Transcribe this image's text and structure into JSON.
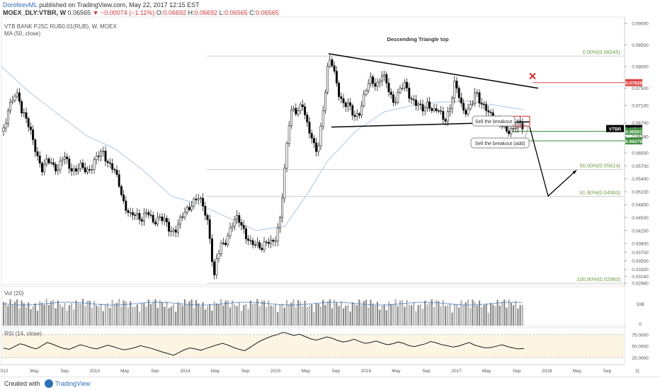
{
  "header": {
    "author": "DorofeevML",
    "published": "published on TradingView.com, May 22, 2017 12:15 EST",
    "symbol": "MOEX_DLY:VTBR, W",
    "last": "0.06565",
    "change": "▼ −0.00074 (−1.11%)",
    "o_label": "O:",
    "o_val": "0.06692",
    "h_label": "H:",
    "h_val": "0.06692",
    "l_label": "L:",
    "l_val": "0.06565",
    "c_label": "C:",
    "c_val": "0.06565",
    "instrument": "VTB BANK PJSC RUB0.01(RUB), W, MOEX",
    "study": "MA (50, close)"
  },
  "panes": {
    "vol_label": "Vol (20)",
    "rsi_label": "RSI (14, close)"
  },
  "footer": {
    "created": "Created with",
    "brand": "TradingView"
  },
  "colors": {
    "candle_up": "#ffffff",
    "candle_down": "#000000",
    "ma": "#b9cfe4",
    "fib": "#6b9e3f",
    "fib_line": "#c9c9c9",
    "red_level": "#e04545",
    "green_level": "#3e8e3e",
    "vol_bar": "#9e9e9e",
    "vol_ma": "#2f6fb6",
    "rsi": "#000000",
    "rsi_band": "#fdf5e4"
  },
  "chart_data": {
    "type": "candlestick",
    "instrument": "VTB BANK PJSC RUB0.01(RUB), W, MOEX",
    "y_ticks": [
      0.09,
      0.085,
      0.08,
      0.075,
      0.071,
      0.067,
      0.0638,
      0.06,
      0.057,
      0.054,
      0.051,
      0.048,
      0.045,
      0.042,
      0.039,
      0.037,
      0.035,
      0.033,
      0.0314,
      0.0298
    ],
    "y_range": [
      0.0295,
      0.0915
    ],
    "x_ticks": [
      "012",
      "May",
      "Sep",
      "2013",
      "May",
      "Sep",
      "2014",
      "May",
      "Sep",
      "2015",
      "May",
      "Sep",
      "2016",
      "May",
      "Sep",
      "2017",
      "May",
      "Sep",
      "2018",
      "May",
      "Sep",
      "2("
    ],
    "price_path": [
      [
        0,
        0.065
      ],
      [
        4,
        0.066
      ],
      [
        9,
        0.07
      ],
      [
        14,
        0.0712
      ],
      [
        19,
        0.073
      ],
      [
        24,
        0.0735
      ],
      [
        29,
        0.07
      ],
      [
        34,
        0.0685
      ],
      [
        40,
        0.065
      ],
      [
        46,
        0.062
      ],
      [
        52,
        0.059
      ],
      [
        58,
        0.056
      ],
      [
        65,
        0.058
      ],
      [
        72,
        0.0575
      ],
      [
        80,
        0.0565
      ],
      [
        88,
        0.059
      ],
      [
        96,
        0.057
      ],
      [
        104,
        0.056
      ],
      [
        112,
        0.0565
      ],
      [
        120,
        0.056
      ],
      [
        128,
        0.057
      ],
      [
        136,
        0.059
      ],
      [
        144,
        0.0605
      ],
      [
        150,
        0.058
      ],
      [
        158,
        0.056
      ],
      [
        166,
        0.053
      ],
      [
        174,
        0.048
      ],
      [
        182,
        0.045
      ],
      [
        190,
        0.046
      ],
      [
        198,
        0.045
      ],
      [
        206,
        0.046
      ],
      [
        214,
        0.044
      ],
      [
        222,
        0.0455
      ],
      [
        230,
        0.044
      ],
      [
        238,
        0.042
      ],
      [
        246,
        0.0425
      ],
      [
        254,
        0.0445
      ],
      [
        262,
        0.047
      ],
      [
        270,
        0.0488
      ],
      [
        278,
        0.0492
      ],
      [
        286,
        0.0475
      ],
      [
        292,
        0.044
      ],
      [
        297,
        0.036
      ],
      [
        300,
        0.03
      ],
      [
        304,
        0.035
      ],
      [
        310,
        0.039
      ],
      [
        318,
        0.04
      ],
      [
        326,
        0.043
      ],
      [
        334,
        0.0455
      ],
      [
        340,
        0.0435
      ],
      [
        346,
        0.04
      ],
      [
        352,
        0.0385
      ],
      [
        360,
        0.0395
      ],
      [
        368,
        0.038
      ],
      [
        376,
        0.039
      ],
      [
        382,
        0.0395
      ],
      [
        388,
        0.041
      ],
      [
        394,
        0.045
      ],
      [
        398,
        0.052
      ],
      [
        402,
        0.06
      ],
      [
        406,
        0.067
      ],
      [
        410,
        0.071
      ],
      [
        414,
        0.07
      ],
      [
        418,
        0.069
      ],
      [
        422,
        0.07
      ],
      [
        426,
        0.071
      ],
      [
        430,
        0.068
      ],
      [
        434,
        0.066
      ],
      [
        438,
        0.064
      ],
      [
        442,
        0.061
      ],
      [
        446,
        0.0595
      ],
      [
        450,
        0.064
      ],
      [
        454,
        0.07
      ],
      [
        458,
        0.076
      ],
      [
        462,
        0.082
      ],
      [
        466,
        0.081
      ],
      [
        470,
        0.078
      ],
      [
        476,
        0.074
      ],
      [
        482,
        0.072
      ],
      [
        490,
        0.071
      ],
      [
        498,
        0.068
      ],
      [
        506,
        0.07
      ],
      [
        514,
        0.074
      ],
      [
        522,
        0.077
      ],
      [
        530,
        0.076
      ],
      [
        538,
        0.078
      ],
      [
        546,
        0.075
      ],
      [
        554,
        0.072
      ],
      [
        562,
        0.074
      ],
      [
        570,
        0.076
      ],
      [
        578,
        0.073
      ],
      [
        586,
        0.071
      ],
      [
        594,
        0.07
      ],
      [
        602,
        0.072
      ],
      [
        610,
        0.069
      ],
      [
        618,
        0.07
      ],
      [
        626,
        0.068
      ],
      [
        634,
        0.07
      ],
      [
        640,
        0.076
      ],
      [
        646,
        0.074
      ],
      [
        652,
        0.07
      ],
      [
        658,
        0.069
      ],
      [
        664,
        0.071
      ],
      [
        670,
        0.075
      ],
      [
        676,
        0.072
      ],
      [
        682,
        0.07
      ],
      [
        690,
        0.069
      ],
      [
        698,
        0.068
      ],
      [
        706,
        0.066
      ],
      [
        714,
        0.065
      ],
      [
        722,
        0.066
      ],
      [
        730,
        0.0665
      ],
      [
        738,
        0.0656
      ]
    ],
    "ma_path": [
      [
        0,
        0.08
      ],
      [
        40,
        0.074
      ],
      [
        80,
        0.069
      ],
      [
        120,
        0.064
      ],
      [
        160,
        0.061
      ],
      [
        200,
        0.056
      ],
      [
        240,
        0.05
      ],
      [
        280,
        0.048
      ],
      [
        320,
        0.045
      ],
      [
        360,
        0.042
      ],
      [
        400,
        0.043
      ],
      [
        430,
        0.05
      ],
      [
        460,
        0.058
      ],
      [
        500,
        0.065
      ],
      [
        540,
        0.0695
      ],
      [
        580,
        0.071
      ],
      [
        620,
        0.0718
      ],
      [
        660,
        0.072
      ],
      [
        700,
        0.071
      ],
      [
        738,
        0.07
      ]
    ],
    "fib_levels": [
      {
        "label": "0.00%(0.08245)",
        "value": 0.08245
      },
      {
        "label": "50.00%(0.05614)",
        "value": 0.05614
      },
      {
        "label": "61.80%(0.04993)",
        "value": 0.04993
      },
      {
        "label": "100.00%(0.02983)",
        "value": 0.02983
      }
    ],
    "price_badges": [
      {
        "label": "VTBR",
        "value": "0.06565",
        "color": "#000000"
      },
      {
        "label": "",
        "value": "0.07629",
        "color": "#e04545"
      },
      {
        "label": "",
        "value": "0.06501",
        "color": "#3e8e3e"
      },
      {
        "label": "",
        "value": "0.06279",
        "color": "#3e8e3e"
      }
    ],
    "levels": {
      "red": 0.07629,
      "green_upper": 0.06501,
      "green_lower": 0.06279
    },
    "pattern": {
      "title": "Descending Triangle top",
      "top_line": [
        [
          462,
          0.083
        ],
        [
          758,
          0.075
        ]
      ],
      "bottom_line": [
        [
          466,
          0.066
        ],
        [
          746,
          0.0672
        ]
      ],
      "projection": [
        [
          746,
          0.066
        ],
        [
          772,
          0.05
        ],
        [
          812,
          0.056
        ]
      ],
      "x_mark_at": [
        750,
        0.0778
      ]
    },
    "annotations": [
      "Sell the breakout",
      "Sell the breakout (add)"
    ],
    "volume": {
      "label": "Vol (20)",
      "tick": "10B",
      "zero": "0"
    },
    "rsi": {
      "label": "RSI (14, close)",
      "levels": [
        "75.0000",
        "50.0000",
        "25.0000"
      ],
      "upper": 75,
      "lower": 25,
      "values": [
        46,
        43,
        49,
        55,
        52,
        47,
        44,
        51,
        58,
        54,
        49,
        45,
        43,
        48,
        53,
        50,
        46,
        44,
        48,
        52,
        49,
        45,
        42,
        44,
        47,
        51,
        48,
        45,
        41,
        37,
        34,
        30,
        36,
        42,
        46,
        44,
        41,
        45,
        49,
        53,
        56,
        52,
        47,
        43,
        40,
        47,
        55,
        62,
        67,
        72,
        75,
        80,
        77,
        73,
        76,
        71,
        66,
        63,
        66,
        70,
        67,
        62,
        59,
        61,
        65,
        60,
        56,
        58,
        61,
        57,
        53,
        55,
        59,
        56,
        51,
        49,
        52,
        55,
        60,
        57,
        53,
        51,
        48,
        50,
        54,
        58,
        52,
        49,
        46,
        47,
        50,
        53,
        49,
        46,
        44,
        45
      ]
    }
  }
}
